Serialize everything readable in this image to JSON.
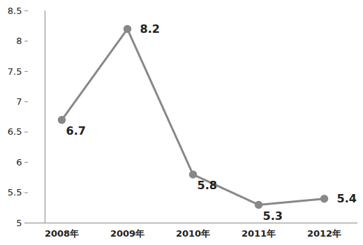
{
  "chart_data": {
    "type": "line",
    "categories": [
      "2008年",
      "2009年",
      "2010年",
      "2011年",
      "2012年"
    ],
    "values": [
      6.7,
      8.2,
      5.8,
      5.3,
      5.4
    ],
    "color": "#888888",
    "marker": "circle",
    "ylim": [
      5,
      8.5
    ],
    "yticks": [
      5,
      5.5,
      6,
      6.5,
      7,
      7.5,
      8,
      8.5
    ],
    "grid": false,
    "data_labels": true
  }
}
